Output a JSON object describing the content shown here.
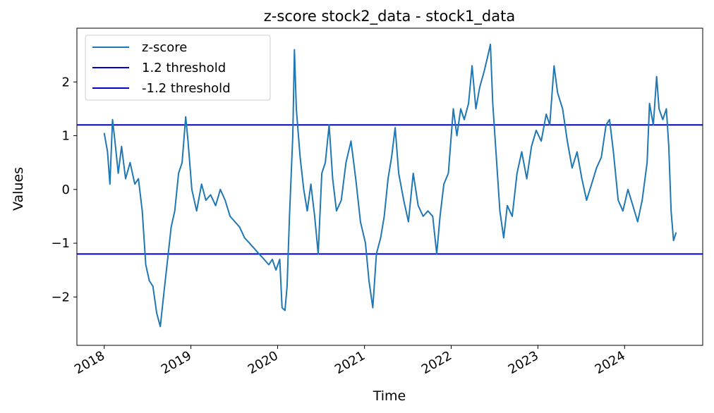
{
  "chart_data": {
    "type": "line",
    "title": "z-score stock2_data -  stock1_data",
    "xlabel": "Time",
    "ylabel": "Values",
    "x_ticks": [
      "2018",
      "2019",
      "2020",
      "2021",
      "2022",
      "2023",
      "2024"
    ],
    "y_ticks": [
      "−2",
      "−1",
      "0",
      "1",
      "2"
    ],
    "xlim": [
      "2017-09-08",
      "2024-11-25"
    ],
    "ylim": [
      -2.9,
      3.0
    ],
    "grid": false,
    "legend_position": "top-left",
    "series": [
      {
        "name": "z-score",
        "color": "#1f77b4",
        "points": [
          [
            "2018-01-01",
            1.05
          ],
          [
            "2018-01-15",
            0.7
          ],
          [
            "2018-01-25",
            0.1
          ],
          [
            "2018-02-05",
            1.3
          ],
          [
            "2018-02-15",
            0.9
          ],
          [
            "2018-03-01",
            0.3
          ],
          [
            "2018-03-15",
            0.8
          ],
          [
            "2018-04-01",
            0.2
          ],
          [
            "2018-04-20",
            0.5
          ],
          [
            "2018-05-10",
            0.1
          ],
          [
            "2018-05-25",
            0.2
          ],
          [
            "2018-06-10",
            -0.4
          ],
          [
            "2018-06-25",
            -1.4
          ],
          [
            "2018-07-10",
            -1.7
          ],
          [
            "2018-07-25",
            -1.8
          ],
          [
            "2018-08-10",
            -2.3
          ],
          [
            "2018-08-25",
            -2.55
          ],
          [
            "2018-09-10",
            -1.9
          ],
          [
            "2018-09-25",
            -1.3
          ],
          [
            "2018-10-10",
            -0.7
          ],
          [
            "2018-10-25",
            -0.4
          ],
          [
            "2018-11-10",
            0.3
          ],
          [
            "2018-11-25",
            0.5
          ],
          [
            "2018-12-10",
            1.35
          ],
          [
            "2018-12-20",
            0.9
          ],
          [
            "2019-01-05",
            0.0
          ],
          [
            "2019-01-25",
            -0.4
          ],
          [
            "2019-02-15",
            0.1
          ],
          [
            "2019-03-05",
            -0.2
          ],
          [
            "2019-03-25",
            -0.1
          ],
          [
            "2019-04-15",
            -0.3
          ],
          [
            "2019-05-05",
            0.0
          ],
          [
            "2019-05-25",
            -0.2
          ],
          [
            "2019-06-15",
            -0.5
          ],
          [
            "2019-07-05",
            -0.6
          ],
          [
            "2019-07-25",
            -0.7
          ],
          [
            "2019-08-15",
            -0.9
          ],
          [
            "2019-09-05",
            -1.0
          ],
          [
            "2019-09-25",
            -1.1
          ],
          [
            "2019-10-15",
            -1.2
          ],
          [
            "2019-11-05",
            -1.3
          ],
          [
            "2019-11-25",
            -1.4
          ],
          [
            "2019-12-10",
            -1.3
          ],
          [
            "2019-12-25",
            -1.5
          ],
          [
            "2020-01-10",
            -1.3
          ],
          [
            "2020-01-20",
            -2.2
          ],
          [
            "2020-02-01",
            -2.25
          ],
          [
            "2020-02-10",
            -1.8
          ],
          [
            "2020-02-20",
            -0.5
          ],
          [
            "2020-03-05",
            1.0
          ],
          [
            "2020-03-12",
            2.6
          ],
          [
            "2020-03-20",
            1.5
          ],
          [
            "2020-04-05",
            0.6
          ],
          [
            "2020-04-20",
            0.0
          ],
          [
            "2020-05-05",
            -0.4
          ],
          [
            "2020-05-20",
            0.1
          ],
          [
            "2020-06-05",
            -0.5
          ],
          [
            "2020-06-20",
            -1.2
          ],
          [
            "2020-07-05",
            0.3
          ],
          [
            "2020-07-20",
            0.5
          ],
          [
            "2020-08-05",
            1.2
          ],
          [
            "2020-08-20",
            0.2
          ],
          [
            "2020-09-05",
            -0.4
          ],
          [
            "2020-09-25",
            -0.2
          ],
          [
            "2020-10-15",
            0.5
          ],
          [
            "2020-11-05",
            0.9
          ],
          [
            "2020-11-25",
            0.2
          ],
          [
            "2020-12-15",
            -0.6
          ],
          [
            "2021-01-05",
            -1.0
          ],
          [
            "2021-01-20",
            -1.7
          ],
          [
            "2021-02-05",
            -2.2
          ],
          [
            "2021-02-20",
            -1.2
          ],
          [
            "2021-03-10",
            -0.9
          ],
          [
            "2021-03-25",
            -0.5
          ],
          [
            "2021-04-10",
            0.2
          ],
          [
            "2021-04-25",
            0.6
          ],
          [
            "2021-05-10",
            1.15
          ],
          [
            "2021-05-25",
            0.3
          ],
          [
            "2021-06-15",
            -0.2
          ],
          [
            "2021-07-05",
            -0.6
          ],
          [
            "2021-07-25",
            0.3
          ],
          [
            "2021-08-15",
            -0.3
          ],
          [
            "2021-09-05",
            -0.5
          ],
          [
            "2021-09-25",
            -0.4
          ],
          [
            "2021-10-15",
            -0.5
          ],
          [
            "2021-11-01",
            -1.2
          ],
          [
            "2021-11-15",
            -0.5
          ],
          [
            "2021-12-01",
            0.1
          ],
          [
            "2021-12-20",
            0.3
          ],
          [
            "2022-01-10",
            1.5
          ],
          [
            "2022-01-25",
            1.0
          ],
          [
            "2022-02-10",
            1.5
          ],
          [
            "2022-02-25",
            1.3
          ],
          [
            "2022-03-15",
            1.6
          ],
          [
            "2022-03-30",
            2.3
          ],
          [
            "2022-04-15",
            1.5
          ],
          [
            "2022-05-01",
            1.9
          ],
          [
            "2022-05-20",
            2.2
          ],
          [
            "2022-06-05",
            2.5
          ],
          [
            "2022-06-15",
            2.7
          ],
          [
            "2022-06-25",
            1.6
          ],
          [
            "2022-07-10",
            0.6
          ],
          [
            "2022-07-25",
            -0.4
          ],
          [
            "2022-08-10",
            -0.9
          ],
          [
            "2022-08-25",
            -0.3
          ],
          [
            "2022-09-15",
            -0.5
          ],
          [
            "2022-10-05",
            0.3
          ],
          [
            "2022-10-25",
            0.7
          ],
          [
            "2022-11-15",
            0.2
          ],
          [
            "2022-12-05",
            0.8
          ],
          [
            "2022-12-25",
            1.1
          ],
          [
            "2023-01-15",
            0.9
          ],
          [
            "2023-02-05",
            1.4
          ],
          [
            "2023-02-20",
            1.2
          ],
          [
            "2023-03-10",
            2.3
          ],
          [
            "2023-03-25",
            1.8
          ],
          [
            "2023-04-15",
            1.5
          ],
          [
            "2023-05-05",
            0.9
          ],
          [
            "2023-05-25",
            0.4
          ],
          [
            "2023-06-15",
            0.7
          ],
          [
            "2023-07-05",
            0.2
          ],
          [
            "2023-07-25",
            -0.2
          ],
          [
            "2023-08-15",
            0.1
          ],
          [
            "2023-09-05",
            0.4
          ],
          [
            "2023-09-25",
            0.6
          ],
          [
            "2023-10-15",
            1.2
          ],
          [
            "2023-10-30",
            1.3
          ],
          [
            "2023-11-15",
            0.7
          ],
          [
            "2023-12-05",
            -0.2
          ],
          [
            "2023-12-25",
            -0.4
          ],
          [
            "2024-01-15",
            0.0
          ],
          [
            "2024-02-05",
            -0.3
          ],
          [
            "2024-02-25",
            -0.6
          ],
          [
            "2024-03-15",
            -0.2
          ],
          [
            "2024-04-05",
            0.5
          ],
          [
            "2024-04-15",
            1.6
          ],
          [
            "2024-05-01",
            1.2
          ],
          [
            "2024-05-15",
            2.1
          ],
          [
            "2024-05-25",
            1.5
          ],
          [
            "2024-06-10",
            1.3
          ],
          [
            "2024-06-25",
            1.5
          ],
          [
            "2024-07-05",
            0.8
          ],
          [
            "2024-07-15",
            -0.4
          ],
          [
            "2024-07-25",
            -0.95
          ],
          [
            "2024-08-05",
            -0.8
          ]
        ]
      },
      {
        "name": "1.2 threshold",
        "color": "#0000cc",
        "value": 1.2
      },
      {
        "name": "-1.2 threshold",
        "color": "#0000cc",
        "value": -1.2
      }
    ]
  }
}
